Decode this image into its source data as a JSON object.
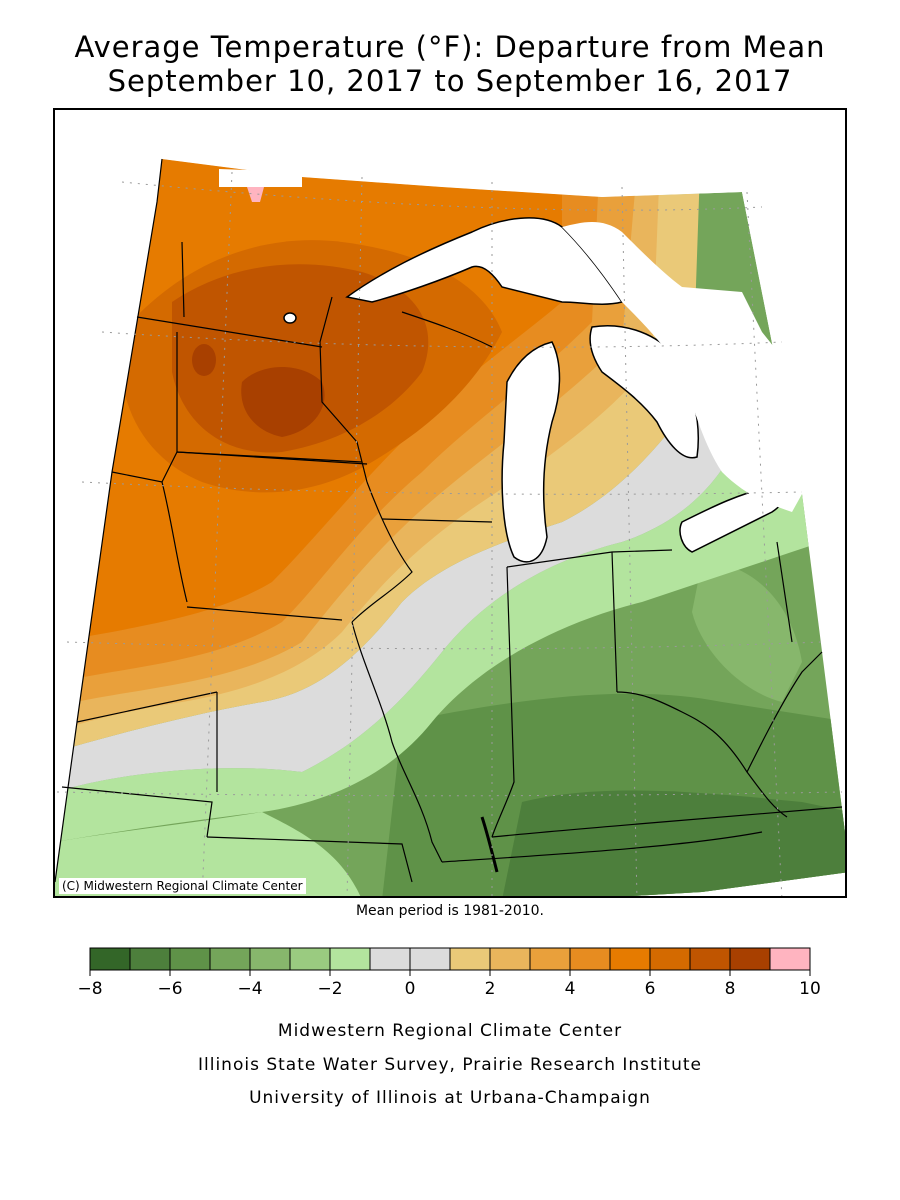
{
  "title_line1": "Average Temperature (°F): Departure from Mean",
  "title_line2": "September 10, 2017 to September 16, 2017",
  "map": {
    "copyright": "(C) Midwestern Regional Climate Center",
    "water_color": "#ffffff",
    "border_color": "#000000"
  },
  "mean_period": "Mean period is 1981-2010.",
  "legend": {
    "unit": "°F",
    "colors": [
      "#336628",
      "#4d7f3c",
      "#5f9248",
      "#74a55a",
      "#87b76c",
      "#9acb80",
      "#b3e49e",
      "#dcdcdc",
      "#dcdcdc",
      "#eac978",
      "#e9b55c",
      "#e9a03b",
      "#e78c20",
      "#e67b00",
      "#d46a00",
      "#c05500",
      "#a84000",
      "#ffb4c0"
    ],
    "ticks": [
      "-8",
      "-6",
      "-4",
      "-2",
      "0",
      "2",
      "4",
      "6",
      "8",
      "10"
    ]
  },
  "footer": {
    "line1": "Midwestern Regional Climate Center",
    "line2": "Illinois State Water Survey, Prairie Research Institute",
    "line3": "University of Illinois at Urbana-Champaign"
  }
}
